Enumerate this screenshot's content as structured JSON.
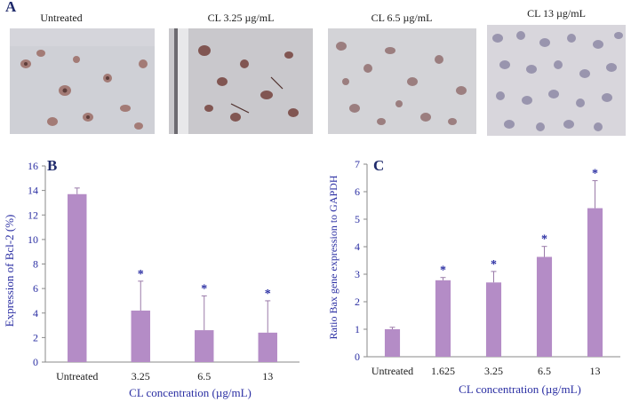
{
  "panel_a": {
    "letter": "A",
    "images": [
      {
        "label": "Untreated"
      },
      {
        "label": "CL 3.25 µg/mL"
      },
      {
        "label": "CL 6.5 µg/mL"
      },
      {
        "label": "CL 13 µg/mL"
      }
    ]
  },
  "chart_data": [
    {
      "panel": "B",
      "type": "bar",
      "categories": [
        "Untreated",
        "3.25",
        "6.5",
        "13"
      ],
      "values": [
        13.7,
        4.2,
        2.6,
        2.4
      ],
      "errors": [
        0.5,
        2.4,
        2.8,
        2.6
      ],
      "significant": [
        false,
        true,
        true,
        true
      ],
      "significance_marker": "*",
      "xlabel": "CL concentration (µg/mL)",
      "ylabel": "Expression of Bcl-2 (%)",
      "ylim": [
        0,
        16
      ],
      "yticks": [
        0,
        2,
        4,
        6,
        8,
        10,
        12,
        14,
        16
      ],
      "grid": false,
      "bar_color": "#b48cc6",
      "text_color": "#2b2fa3"
    },
    {
      "panel": "C",
      "type": "bar",
      "categories": [
        "Untreated",
        "1.625",
        "3.25",
        "6.5",
        "13"
      ],
      "values": [
        1.0,
        2.78,
        2.7,
        3.63,
        5.4
      ],
      "errors": [
        0.07,
        0.1,
        0.4,
        0.38,
        1.0
      ],
      "significant": [
        false,
        true,
        true,
        true,
        true
      ],
      "significance_marker": "*",
      "xlabel": "CL concentration (µg/mL)",
      "ylabel": "Ratio Bax gene expression to GAPDH",
      "ylim": [
        0,
        7
      ],
      "yticks": [
        0,
        1,
        2,
        3,
        4,
        5,
        6,
        7
      ],
      "grid": false,
      "bar_color": "#b48cc6",
      "text_color": "#2b2fa3"
    }
  ]
}
